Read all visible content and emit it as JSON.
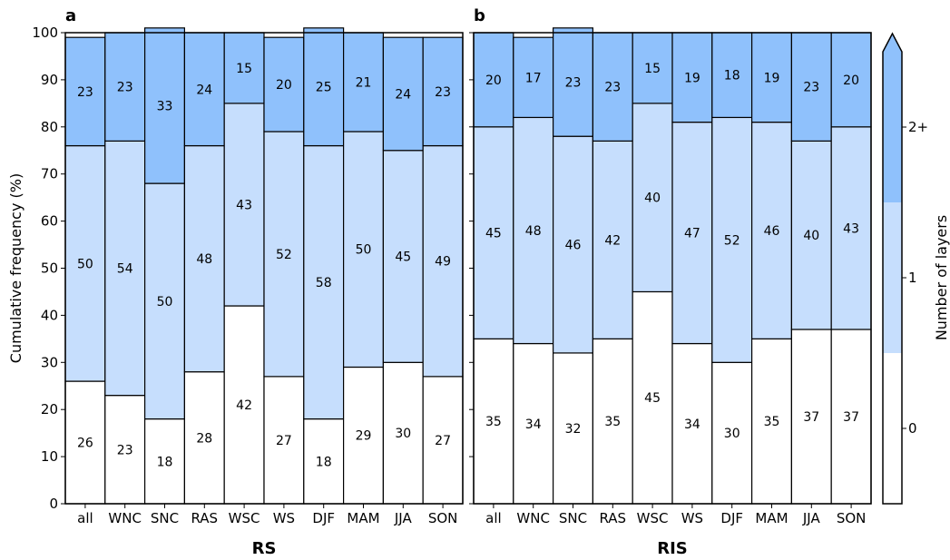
{
  "chart_data": {
    "type": "bar",
    "stacked": true,
    "ylabel": "Cumulative frequency (%)",
    "ylim": [
      0,
      100
    ],
    "yticks": [
      0,
      10,
      20,
      30,
      40,
      50,
      60,
      70,
      80,
      90,
      100
    ],
    "grid": false,
    "colors": {
      "0": "#ffffff",
      "1": "#c6defd",
      "2+": "#8fc1fc"
    },
    "colorbar": {
      "label": "Number of layers",
      "levels": [
        "0",
        "1",
        "2+"
      ],
      "extend": "max"
    },
    "panels": [
      {
        "letter": "a",
        "title": "RS",
        "categories": [
          "all",
          "WNC",
          "SNC",
          "RAS",
          "WSC",
          "WS",
          "DJF",
          "MAM",
          "JJA",
          "SON"
        ],
        "series": [
          {
            "name": "0",
            "values": [
              26,
              23,
              18,
              28,
              42,
              27,
              18,
              29,
              30,
              27
            ]
          },
          {
            "name": "1",
            "values": [
              50,
              54,
              50,
              48,
              43,
              52,
              58,
              50,
              45,
              49
            ]
          },
          {
            "name": "2+",
            "values": [
              23,
              23,
              33,
              24,
              15,
              20,
              25,
              21,
              24,
              23
            ]
          }
        ]
      },
      {
        "letter": "b",
        "title": "RIS",
        "categories": [
          "all",
          "WNC",
          "SNC",
          "RAS",
          "WSC",
          "WS",
          "DJF",
          "MAM",
          "JJA",
          "SON"
        ],
        "series": [
          {
            "name": "0",
            "values": [
              35,
              34,
              32,
              35,
              45,
              34,
              30,
              35,
              37,
              37
            ]
          },
          {
            "name": "1",
            "values": [
              45,
              48,
              46,
              42,
              40,
              47,
              52,
              46,
              40,
              43
            ]
          },
          {
            "name": "2+",
            "values": [
              20,
              17,
              23,
              23,
              15,
              19,
              18,
              19,
              23,
              20
            ]
          }
        ]
      }
    ]
  }
}
